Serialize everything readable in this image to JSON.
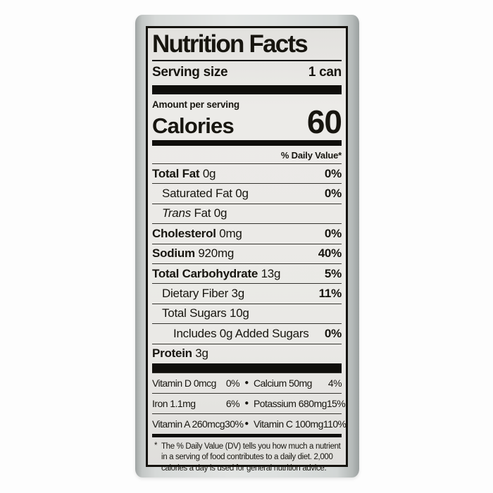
{
  "colors": {
    "page_bg": "#fdfdfd",
    "can_gray": "#d8dbda",
    "panel_bg": "#eae9e6",
    "ink": "#14120d",
    "separator": "#0f0e0b",
    "text": "#17150f"
  },
  "panel": {
    "title": "Nutrition Facts",
    "serving": {
      "label": "Serving size",
      "value": "1 can"
    },
    "amount_per_serving": "Amount per serving",
    "calories": {
      "label": "Calories",
      "value": "60"
    },
    "daily_value_header": "% Daily Value*",
    "nutrient_rows": [
      {
        "name": "Total Fat",
        "amount": "0g",
        "dv": "0%"
      },
      {
        "name": "Saturated Fat",
        "amount": "0g",
        "dv": "0%"
      },
      {
        "name_italic": "Trans",
        "name": "Fat",
        "amount": "0g",
        "dv": ""
      },
      {
        "name": "Cholesterol",
        "amount": "0mg",
        "dv": "0%"
      },
      {
        "name": "Sodium",
        "amount": "920mg",
        "dv": "40%"
      },
      {
        "name": "Total Carbohydrate",
        "amount": "13g",
        "dv": "5%"
      },
      {
        "name": "Dietary Fiber",
        "amount": "3g",
        "dv": "11%"
      },
      {
        "name": "Total Sugars",
        "amount": "10g",
        "dv": ""
      },
      {
        "name": "Includes 0g Added Sugars",
        "amount": "",
        "dv": "0%"
      },
      {
        "name": "Protein",
        "amount": "3g",
        "dv": ""
      }
    ],
    "micronutrient_rows": [
      {
        "left_name": "Vitamin D 0mcg",
        "left_dv": "0%",
        "bullet": "●",
        "right_name": "Calcium 50mg",
        "right_dv": "4%"
      },
      {
        "left_name": "Iron 1.1mg",
        "left_dv": "6%",
        "bullet": "●",
        "right_name": "Potassium 680mg",
        "right_dv": "15%"
      },
      {
        "left_name": "Vitamin A 260mcg",
        "left_dv": "30%",
        "bullet": "●",
        "right_name": "Vitamin C 100mg",
        "right_dv": "110%"
      }
    ],
    "footnote": {
      "marker": "*",
      "lines": [
        "The % Daily Value (DV) tells you how much a nutrient",
        "in a serving of food contributes to a daily diet. 2,000",
        "calories a day is used for general nutrition advice."
      ]
    }
  }
}
